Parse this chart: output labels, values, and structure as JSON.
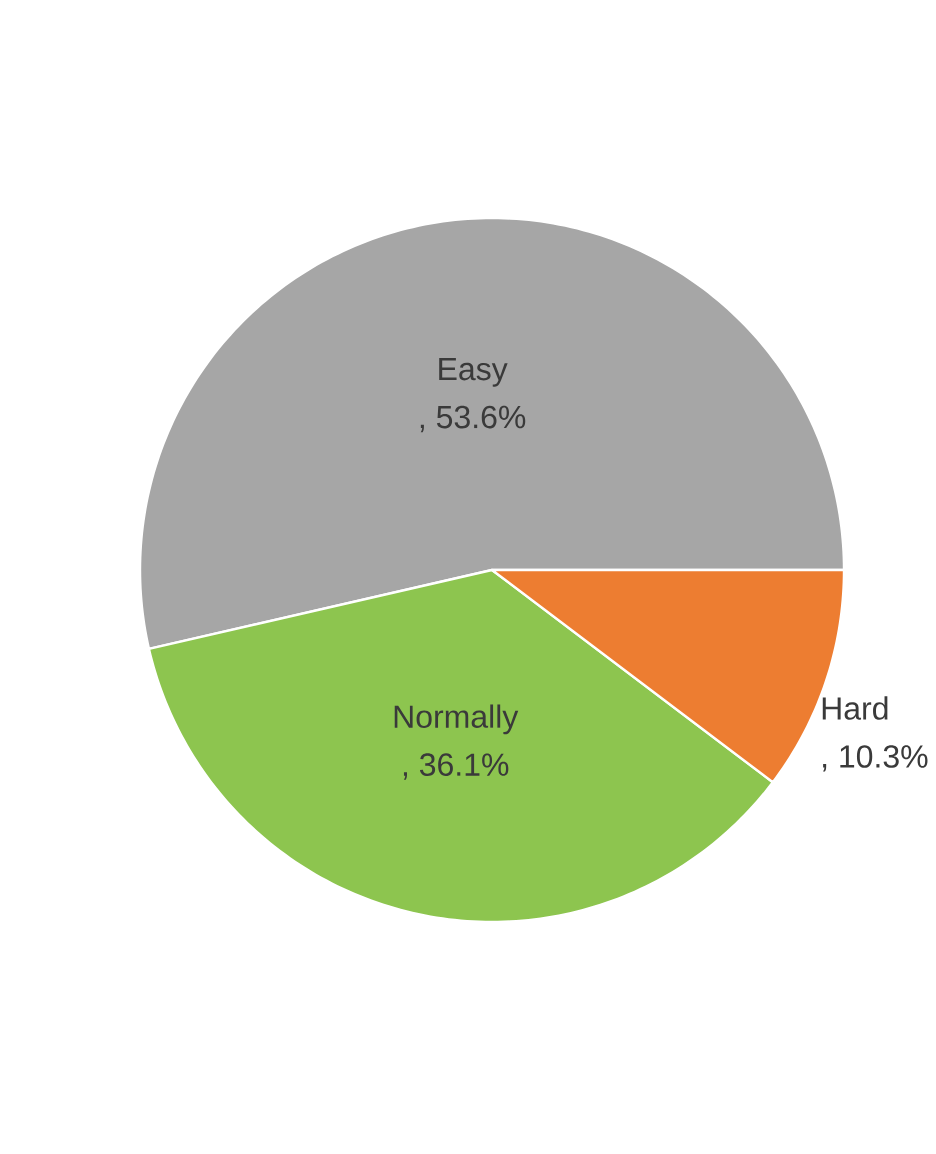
{
  "chart_data": {
    "type": "pie",
    "categories": [
      "Easy",
      "Normally",
      "Hard"
    ],
    "values": [
      53.6,
      36.1,
      10.3
    ],
    "colors": [
      "#a6a6a6",
      "#8dc54f",
      "#ed7d31"
    ],
    "value_labels": [
      ", 53.6%",
      ", 36.1%",
      ", 10.3%"
    ]
  }
}
